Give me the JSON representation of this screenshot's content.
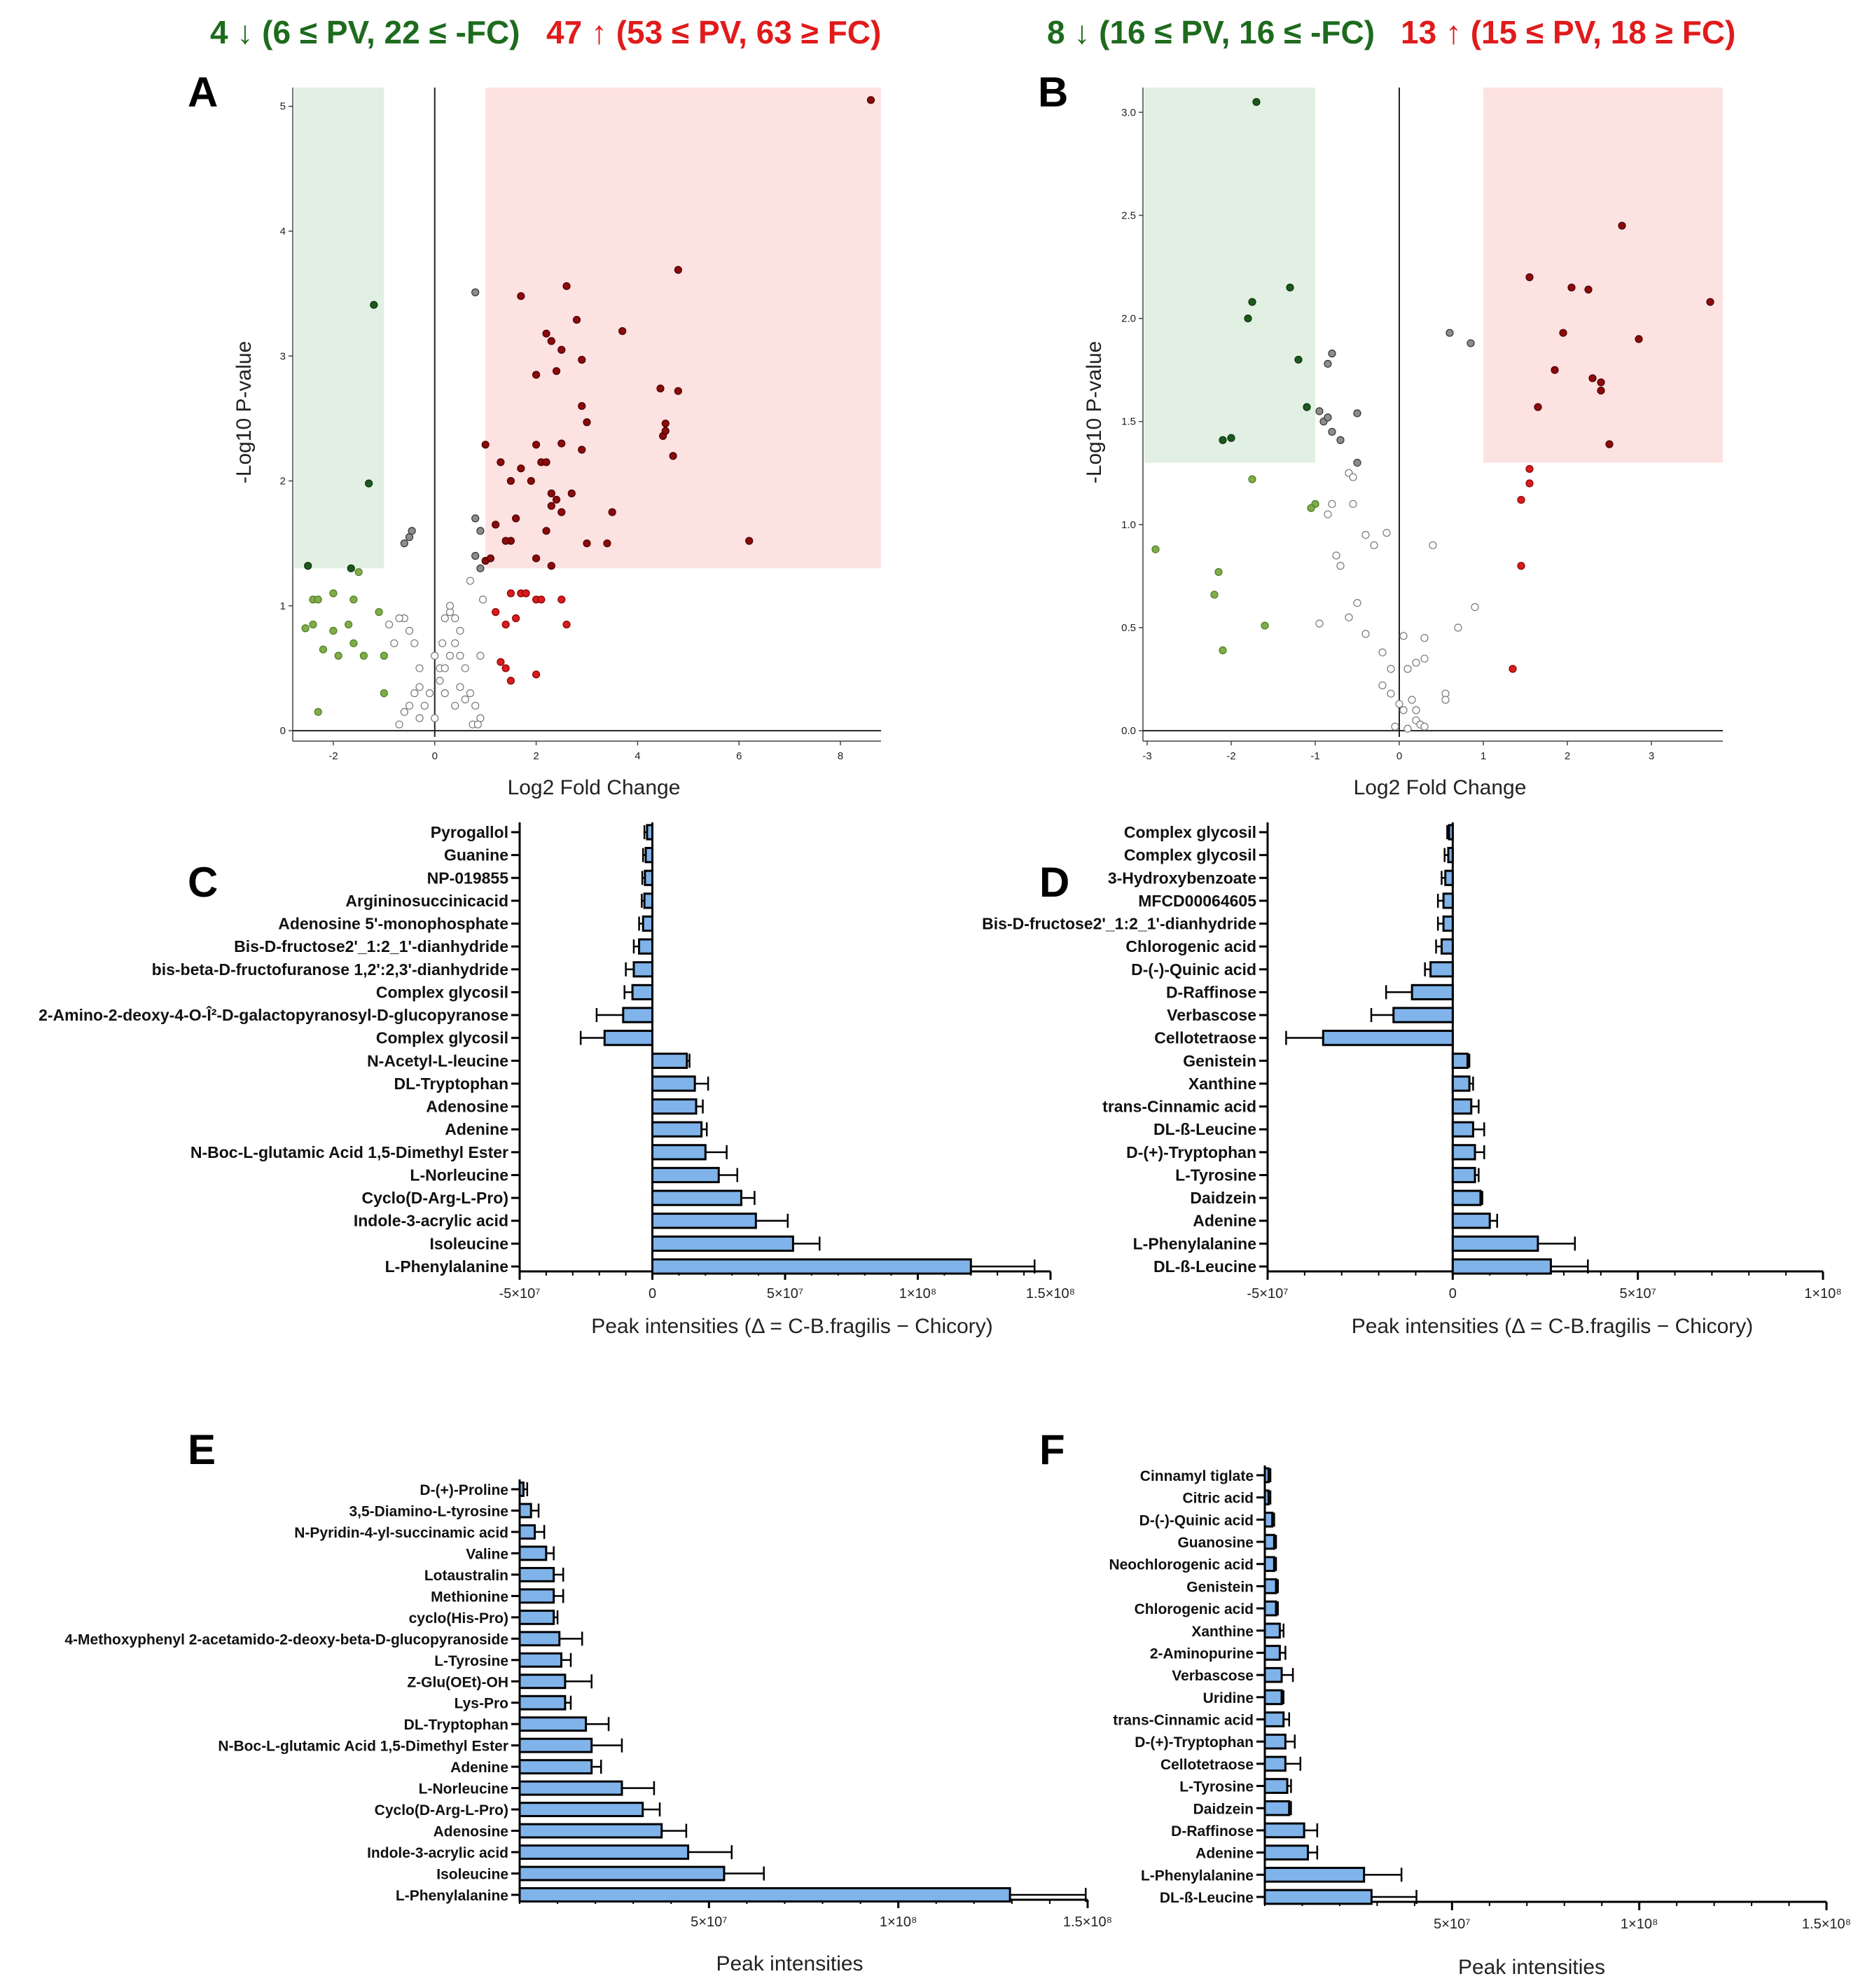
{
  "headers": {
    "a_down": "4 ↓ (6 ≤ PV, 22 ≤ -FC)",
    "a_up": "47 ↑ (53 ≤ PV, 63 ≥ FC)",
    "b_down": "8 ↓ (16 ≤ PV, 16 ≤ -FC)",
    "b_up": "13 ↑ (15 ≤ PV, 18 ≥ FC)"
  },
  "colors": {
    "green_text": "#1e6b1e",
    "red_text": "#e01b1b",
    "green_zone": "#e2f0e3",
    "red_zone": "#fde2e2",
    "bar_fill": "#7fb3ea",
    "sig_green": "#1d5a1d",
    "sig_red": "#8b0a0a",
    "lite_green": "#7fae48",
    "lite_red": "#d81c1c",
    "grey_pt": "#8c8c8c"
  },
  "chart_data": [
    {
      "panel": "A",
      "type": "scatter",
      "xlabel": "Log2 Fold Change",
      "ylabel": "-Log10 P-value",
      "xlim": [
        -2.8,
        8.8
      ],
      "ylim": [
        -0.05,
        5.15
      ],
      "xticks": [
        -2,
        0,
        2,
        4,
        6,
        8
      ],
      "yticks": [
        0,
        1,
        2,
        3,
        4,
        5
      ],
      "sig_threshold": 1.3,
      "fc_down": -1,
      "fc_up": 1,
      "points": [
        [
          -2.5,
          1.32
        ],
        [
          -1.2,
          3.41
        ],
        [
          -1.3,
          1.98
        ],
        [
          -1.65,
          1.3
        ],
        [
          -2.55,
          0.82
        ],
        [
          -2.4,
          1.05
        ],
        [
          -2.3,
          1.05
        ],
        [
          -2.0,
          1.1
        ],
        [
          -1.9,
          0.6
        ],
        [
          -1.6,
          0.7
        ],
        [
          -1.5,
          1.27
        ],
        [
          -2.2,
          0.65
        ],
        [
          -1.7,
          0.85
        ],
        [
          -2.0,
          0.8
        ],
        [
          -1.6,
          1.05
        ],
        [
          -1.4,
          0.6
        ],
        [
          -2.4,
          0.85
        ],
        [
          -2.3,
          0.15
        ],
        [
          -0.5,
          1.55
        ],
        [
          -0.45,
          1.6
        ],
        [
          -0.6,
          1.5
        ],
        [
          -1.1,
          0.95
        ],
        [
          -0.6,
          0.9
        ],
        [
          -0.5,
          0.8
        ],
        [
          -0.7,
          0.9
        ],
        [
          -0.9,
          0.85
        ],
        [
          -1.0,
          0.6
        ],
        [
          -0.8,
          0.7
        ],
        [
          -1.0,
          0.3
        ],
        [
          -0.3,
          0.5
        ],
        [
          -0.4,
          0.7
        ],
        [
          -0.3,
          0.1
        ],
        [
          -0.1,
          0.3
        ],
        [
          0.1,
          0.5
        ],
        [
          0.3,
          0.6
        ],
        [
          0.4,
          0.7
        ],
        [
          0.2,
          0.5
        ],
        [
          0.5,
          0.6
        ],
        [
          0.6,
          0.5
        ],
        [
          0.7,
          0.3
        ],
        [
          0.8,
          0.2
        ],
        [
          0.9,
          0.1
        ],
        [
          -0.7,
          0.05
        ],
        [
          -0.5,
          0.2
        ],
        [
          -0.2,
          0.2
        ],
        [
          0.0,
          0.1
        ],
        [
          0.2,
          0.9
        ],
        [
          0.3,
          0.95
        ],
        [
          0.4,
          0.9
        ],
        [
          0.5,
          0.35
        ],
        [
          0.6,
          0.25
        ],
        [
          0.75,
          0.05
        ],
        [
          0.85,
          0.05
        ],
        [
          0.9,
          0.6
        ],
        [
          -0.6,
          0.15
        ],
        [
          -0.4,
          0.3
        ],
        [
          0.1,
          0.4
        ],
        [
          0.2,
          0.3
        ],
        [
          0.4,
          0.2
        ],
        [
          -0.3,
          0.35
        ],
        [
          0.0,
          0.6
        ],
        [
          0.15,
          0.7
        ],
        [
          0.3,
          1.0
        ],
        [
          0.5,
          0.8
        ],
        [
          0.7,
          1.2
        ],
        [
          0.8,
          3.51
        ],
        [
          0.8,
          1.7
        ],
        [
          0.9,
          1.6
        ],
        [
          0.8,
          1.4
        ],
        [
          0.9,
          1.3
        ],
        [
          0.95,
          1.05
        ],
        [
          1.7,
          3.48
        ],
        [
          2.6,
          3.56
        ],
        [
          4.8,
          3.69
        ],
        [
          2.2,
          3.18
        ],
        [
          2.3,
          3.12
        ],
        [
          2.8,
          3.29
        ],
        [
          3.7,
          3.2
        ],
        [
          2.5,
          3.05
        ],
        [
          2.9,
          2.97
        ],
        [
          2.0,
          2.85
        ],
        [
          2.4,
          2.88
        ],
        [
          2.9,
          2.6
        ],
        [
          4.45,
          2.74
        ],
        [
          4.8,
          2.72
        ],
        [
          3.0,
          2.47
        ],
        [
          4.55,
          2.46
        ],
        [
          4.5,
          2.36
        ],
        [
          4.55,
          2.4
        ],
        [
          4.7,
          2.2
        ],
        [
          1.0,
          2.29
        ],
        [
          2.0,
          2.29
        ],
        [
          2.5,
          2.3
        ],
        [
          2.9,
          2.25
        ],
        [
          1.3,
          2.15
        ],
        [
          2.1,
          2.15
        ],
        [
          2.2,
          2.15
        ],
        [
          1.7,
          2.1
        ],
        [
          1.5,
          2.0
        ],
        [
          1.9,
          2.0
        ],
        [
          2.3,
          1.9
        ],
        [
          2.7,
          1.9
        ],
        [
          2.3,
          1.8
        ],
        [
          2.4,
          1.85
        ],
        [
          2.5,
          1.75
        ],
        [
          3.5,
          1.75
        ],
        [
          1.2,
          1.65
        ],
        [
          1.6,
          1.7
        ],
        [
          2.2,
          1.6
        ],
        [
          1.5,
          1.52
        ],
        [
          1.4,
          1.52
        ],
        [
          3.0,
          1.5
        ],
        [
          3.4,
          1.5
        ],
        [
          6.2,
          1.52
        ],
        [
          1.0,
          1.36
        ],
        [
          1.1,
          1.38
        ],
        [
          2.0,
          1.38
        ],
        [
          2.3,
          1.32
        ],
        [
          8.6,
          5.05
        ],
        [
          2.0,
          1.05
        ],
        [
          2.1,
          1.05
        ],
        [
          2.5,
          1.05
        ],
        [
          1.5,
          1.1
        ],
        [
          1.7,
          1.1
        ],
        [
          1.8,
          1.1
        ],
        [
          1.2,
          0.95
        ],
        [
          1.4,
          0.85
        ],
        [
          1.6,
          0.9
        ],
        [
          2.6,
          0.85
        ],
        [
          1.3,
          0.55
        ],
        [
          1.4,
          0.5
        ],
        [
          1.5,
          0.4
        ],
        [
          2.0,
          0.45
        ]
      ]
    },
    {
      "panel": "B",
      "type": "scatter",
      "xlabel": "Log2 Fold Change",
      "ylabel": "-Log10 P-value",
      "xlim": [
        -3.05,
        3.85
      ],
      "ylim": [
        -0.03,
        3.12
      ],
      "xticks": [
        -3,
        -2,
        -1,
        0,
        1,
        2,
        3
      ],
      "yticks": [
        0.0,
        0.5,
        1.0,
        1.5,
        2.0,
        2.5,
        3.0
      ],
      "sig_threshold": 1.3,
      "fc_down": -1,
      "fc_up": 1,
      "points": [
        [
          -1.7,
          3.05
        ],
        [
          -1.3,
          2.15
        ],
        [
          -1.75,
          2.08
        ],
        [
          -1.8,
          2.0
        ],
        [
          -1.2,
          1.8
        ],
        [
          -1.1,
          1.57
        ],
        [
          -2.0,
          1.42
        ],
        [
          -2.1,
          1.41
        ],
        [
          -2.9,
          0.88
        ],
        [
          -2.15,
          0.77
        ],
        [
          -2.2,
          0.66
        ],
        [
          -1.75,
          1.22
        ],
        [
          -1.0,
          1.1
        ],
        [
          -1.05,
          1.08
        ],
        [
          -2.1,
          0.39
        ],
        [
          -1.6,
          0.51
        ],
        [
          -0.8,
          1.83
        ],
        [
          -0.85,
          1.78
        ],
        [
          -0.95,
          1.55
        ],
        [
          -0.9,
          1.5
        ],
        [
          -0.85,
          1.52
        ],
        [
          -0.8,
          1.45
        ],
        [
          -0.5,
          1.54
        ],
        [
          -0.7,
          1.41
        ],
        [
          -0.5,
          1.3
        ],
        [
          -0.6,
          1.25
        ],
        [
          -0.55,
          1.23
        ],
        [
          -0.55,
          1.1
        ],
        [
          -0.8,
          1.1
        ],
        [
          -0.85,
          1.05
        ],
        [
          -0.4,
          0.95
        ],
        [
          -0.3,
          0.9
        ],
        [
          -0.15,
          0.96
        ],
        [
          0.4,
          0.9
        ],
        [
          -0.75,
          0.85
        ],
        [
          -0.7,
          0.8
        ],
        [
          -0.5,
          0.62
        ],
        [
          -0.6,
          0.55
        ],
        [
          -0.95,
          0.52
        ],
        [
          -0.4,
          0.47
        ],
        [
          -0.2,
          0.38
        ],
        [
          -0.1,
          0.3
        ],
        [
          0.05,
          0.46
        ],
        [
          0.3,
          0.45
        ],
        [
          0.1,
          0.3
        ],
        [
          0.2,
          0.33
        ],
        [
          0.3,
          0.35
        ],
        [
          -0.2,
          0.22
        ],
        [
          -0.1,
          0.18
        ],
        [
          0.0,
          0.13
        ],
        [
          0.05,
          0.1
        ],
        [
          0.15,
          0.15
        ],
        [
          0.2,
          0.1
        ],
        [
          0.55,
          0.18
        ],
        [
          0.55,
          0.15
        ],
        [
          0.9,
          0.6
        ],
        [
          0.7,
          0.5
        ],
        [
          0.1,
          0.01
        ],
        [
          0.2,
          0.05
        ],
        [
          0.25,
          0.03
        ],
        [
          0.3,
          0.02
        ],
        [
          -0.05,
          0.02
        ],
        [
          0.6,
          1.93
        ],
        [
          0.85,
          1.88
        ],
        [
          2.65,
          2.45
        ],
        [
          1.55,
          2.2
        ],
        [
          2.05,
          2.15
        ],
        [
          2.25,
          2.14
        ],
        [
          3.7,
          2.08
        ],
        [
          1.95,
          1.93
        ],
        [
          2.85,
          1.9
        ],
        [
          1.85,
          1.75
        ],
        [
          2.3,
          1.71
        ],
        [
          2.4,
          1.69
        ],
        [
          2.4,
          1.65
        ],
        [
          1.65,
          1.57
        ],
        [
          2.5,
          1.39
        ],
        [
          1.55,
          1.27
        ],
        [
          1.55,
          1.2
        ],
        [
          1.45,
          1.12
        ],
        [
          1.45,
          0.8
        ],
        [
          1.35,
          0.3
        ]
      ]
    },
    {
      "panel": "C",
      "type": "bar",
      "orientation": "horizontal",
      "xlabel": "Peak intensities (Δ = C-B.fragilis − Chicory)",
      "xlim": [
        -50000000,
        150000000
      ],
      "xtick_values": [
        -50000000,
        0,
        50000000,
        100000000,
        150000000
      ],
      "xtick_labels": [
        "-5×10⁷",
        "0",
        "5×10⁷",
        "1×10⁸",
        "1.5×10⁸"
      ],
      "categories": [
        "Pyrogallol",
        "Guanine",
        "NP-019855",
        "Argininosuccinicacid",
        "Adenosine 5'-monophosphate",
        "Bis-D-fructose2'_1:2_1'-dianhydride",
        "bis-beta-D-fructofuranose 1,2':2,3'-dianhydride",
        "Complex glycosil",
        "2-Amino-2-deoxy-4-O-Î²-D-galactopyranosyl-D-glucopyranose",
        "Complex glycosil",
        "N-Acetyl-L-leucine",
        "DL-Tryptophan",
        "Adenosine",
        "Adenine",
        "N-Boc-L-glutamic Acid 1,5-Dimethyl Ester",
        "L-Norleucine",
        "Cyclo(D-Arg-L-Pro)",
        "Indole-3-acrylic acid",
        "Isoleucine",
        "L-Phenylalanine"
      ],
      "values": [
        -2000000,
        -2500000,
        -2800000,
        -3000000,
        -3500000,
        -5000000,
        -7000000,
        -7500000,
        -11000000,
        -18000000,
        13000000,
        16000000,
        16500000,
        18500000,
        20000000,
        25000000,
        33500000,
        39000000,
        53000000,
        120000000
      ],
      "errors": [
        1000000,
        1000000,
        1000000,
        1000000,
        1500000,
        2000000,
        3000000,
        3000000,
        10000000,
        9000000,
        1000000,
        5000000,
        2500000,
        2000000,
        8000000,
        7000000,
        5000000,
        12000000,
        10000000,
        24000000
      ]
    },
    {
      "panel": "D",
      "type": "bar",
      "orientation": "horizontal",
      "xlabel": "Peak intensities (Δ = C-B.fragilis − Chicory)",
      "xlim": [
        -50000000,
        100000000
      ],
      "xtick_values": [
        -50000000,
        0,
        50000000,
        100000000
      ],
      "xtick_labels": [
        "-5×10⁷",
        "0",
        "5×10⁷",
        "1×10⁸"
      ],
      "categories": [
        "Complex glycosil",
        "Complex glycosil",
        "3-Hydroxybenzoate",
        "MFCD00064605",
        "Bis-D-fructose2'_1:2_1'-dianhydride",
        "Chlorogenic acid",
        "D-(-)-Quinic acid",
        "D-Raffinose",
        "Verbascose",
        "Cellotetraose",
        "Genistein",
        "Xanthine",
        "trans-Cinnamic acid",
        "DL-ß-Leucine",
        "D-(+)-Tryptophan",
        "L-Tyrosine",
        "Daidzein",
        "Adenine",
        "L-Phenylalanine",
        "DL-ß-Leucine"
      ],
      "values": [
        -1000000,
        -1200000,
        -2000000,
        -2500000,
        -2500000,
        -3000000,
        -6000000,
        -11000000,
        -16000000,
        -35000000,
        4000000,
        4500000,
        5000000,
        5500000,
        6000000,
        6000000,
        7500000,
        10000000,
        23000000,
        26500000
      ],
      "errors": [
        500000,
        1000000,
        1000000,
        1500000,
        1500000,
        1500000,
        1500000,
        7000000,
        6000000,
        10000000,
        500000,
        1000000,
        2000000,
        3000000,
        2500000,
        1000000,
        500000,
        2000000,
        10000000,
        10000000
      ]
    },
    {
      "panel": "E",
      "type": "bar",
      "orientation": "horizontal",
      "xlabel": "Peak intensities",
      "xlim": [
        0,
        150000000
      ],
      "xtick_values": [
        50000000,
        100000000,
        150000000
      ],
      "xtick_labels": [
        "5×10⁷",
        "1×10⁸",
        "1.5×10⁸"
      ],
      "categories": [
        "D-(+)-Proline",
        "3,5-Diamino-L-tyrosine",
        "N-Pyridin-4-yl-succinamic acid",
        "Valine",
        "Lotaustralin",
        "Methionine",
        "cyclo(His-Pro)",
        "4-Methoxyphenyl 2-acetamido-2-deoxy-beta-D-glucopyranoside",
        "L-Tyrosine",
        "Z-Glu(OEt)-OH",
        "Lys-Pro",
        "DL-Tryptophan",
        "N-Boc-L-glutamic Acid 1,5-Dimethyl Ester",
        "Adenine",
        "L-Norleucine",
        "Cyclo(D-Arg-L-Pro)",
        "Adenosine",
        "Indole-3-acrylic acid",
        "Isoleucine",
        "L-Phenylalanine"
      ],
      "values": [
        1000000,
        3000000,
        4000000,
        7000000,
        9000000,
        9000000,
        9000000,
        10500000,
        11000000,
        12000000,
        12000000,
        17500000,
        19000000,
        19000000,
        27000000,
        32500000,
        37500000,
        44500000,
        54000000,
        129500000
      ],
      "errors": [
        1000000,
        2000000,
        2500000,
        2000000,
        2500000,
        2500000,
        1000000,
        6000000,
        2500000,
        7000000,
        1500000,
        6000000,
        8000000,
        2500000,
        8500000,
        4500000,
        6500000,
        11500000,
        10500000,
        20000000
      ]
    },
    {
      "panel": "F",
      "type": "bar",
      "orientation": "horizontal",
      "xlabel": "Peak intensities",
      "xlim": [
        0,
        150000000
      ],
      "xtick_values": [
        50000000,
        100000000,
        150000000
      ],
      "xtick_labels": [
        "5×10⁷",
        "1×10⁸",
        "1.5×10⁸"
      ],
      "categories": [
        "Cinnamyl tiglate",
        "Citric acid",
        "D-(-)-Quinic acid",
        "Guanosine",
        "Neochlorogenic acid",
        "Genistein",
        "Chlorogenic acid",
        "Xanthine",
        "2-Aminopurine",
        "Verbascose",
        "Uridine",
        "trans-Cinnamic acid",
        "D-(+)-Tryptophan",
        "Cellotetraose",
        "L-Tyrosine",
        "Daidzein",
        "D-Raffinose",
        "Adenine",
        "L-Phenylalanine",
        "DL-ß-Leucine"
      ],
      "values": [
        1000000,
        1000000,
        2000000,
        2500000,
        2500000,
        3000000,
        3000000,
        4000000,
        4000000,
        4500000,
        4500000,
        5000000,
        5500000,
        5500000,
        6000000,
        6500000,
        10500000,
        11500000,
        26500000,
        28500000
      ],
      "errors": [
        500000,
        500000,
        500000,
        500000,
        500000,
        500000,
        500000,
        1000000,
        1500000,
        3000000,
        500000,
        1500000,
        2500000,
        4000000,
        1000000,
        500000,
        3500000,
        2500000,
        10000000,
        12000000
      ]
    }
  ]
}
